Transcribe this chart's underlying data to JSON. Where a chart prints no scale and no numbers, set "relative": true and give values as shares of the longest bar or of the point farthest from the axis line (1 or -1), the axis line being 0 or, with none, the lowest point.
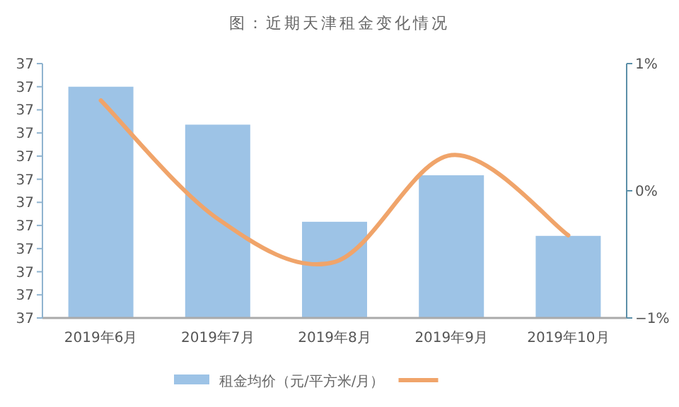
{
  "chart_data": {
    "type": "bar",
    "title": "图：近期天津租金变化情况",
    "relative": true,
    "categories": [
      "2019年6月",
      "2019年7月",
      "2019年8月",
      "2019年9月",
      "2019年10月"
    ],
    "annotations": [
      "37",
      "37",
      "37",
      "37",
      "37",
      "37",
      "37",
      "37",
      "37",
      "37",
      "37",
      "37"
    ],
    "y2lim": [
      -1,
      1
    ],
    "y2ticks": [
      {
        "value": -1,
        "label": "−1%"
      },
      {
        "value": 0,
        "label": "0%"
      },
      {
        "value": 1,
        "label": "1%"
      }
    ],
    "legend": "bottom",
    "series": [
      {
        "name": "租金均价（元/平方米/月）",
        "color": "#9dc3e6",
        "values": [
          1,
          0.836,
          0.416,
          0.617,
          0.355
        ]
      },
      {
        "type": "line",
        "axis": "y2",
        "color": "#f0a46a",
        "values": [
          0.71,
          -0.22,
          -0.56,
          0.28,
          -0.35
        ]
      }
    ]
  }
}
